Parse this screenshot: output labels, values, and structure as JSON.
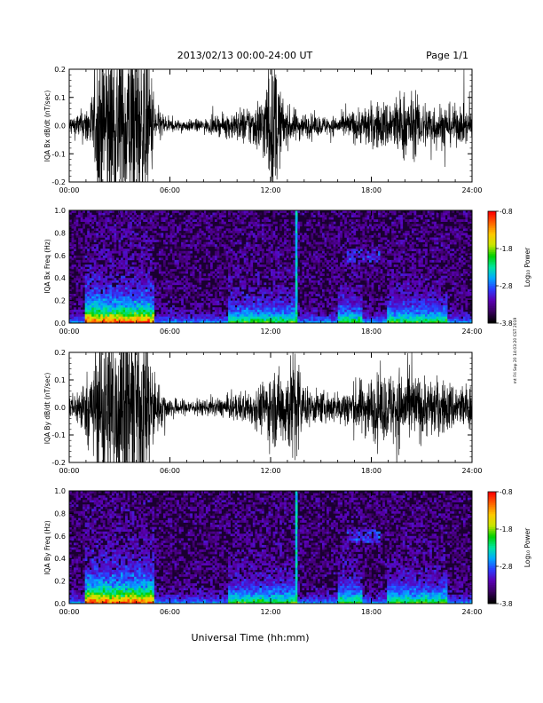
{
  "header": {
    "date_range": "2013/02/13  00:00-24:00 UT",
    "page": "Page 1/1"
  },
  "footer": {
    "xlabel": "Universal Time (hh:mm)",
    "stamp": "mt Fri Sep 20 14:03:20 CST 2019"
  },
  "colorbar": {
    "label": "Log₁₀ Power",
    "ticks": [
      "-0.8",
      "-1.8",
      "-2.8",
      "-3.8"
    ],
    "min": -3.8,
    "max": -0.8,
    "colors": [
      "#000000",
      "#3a0060",
      "#5a00b4",
      "#2c3cff",
      "#00aaff",
      "#00e6a0",
      "#00d000",
      "#c8e600",
      "#ffc800",
      "#ff6400",
      "#ff0000"
    ]
  },
  "chart_data": [
    {
      "type": "line",
      "ylabel": "IQA Bx dB/dt (nT/sec)",
      "xlim": [
        0,
        24
      ],
      "ylim": [
        -0.2,
        0.2
      ],
      "x_ticks": [
        "00:00",
        "06:00",
        "12:00",
        "18:00",
        "24:00"
      ],
      "y_ticks": [
        "-0.2",
        "-0.1",
        "0.0",
        "0.1",
        "0.2"
      ],
      "envelope": {
        "hours": [
          0,
          0.5,
          1,
          1.5,
          1.8,
          2.0,
          2.5,
          3.0,
          3.5,
          4.0,
          4.5,
          4.8,
          5.2,
          6,
          7,
          8,
          9,
          10,
          11,
          11.5,
          12.0,
          12.3,
          12.6,
          13,
          14,
          15,
          16,
          17,
          17.5,
          18,
          19,
          19.5,
          20,
          21,
          22,
          23,
          24
        ],
        "amplitude": [
          0.03,
          0.04,
          0.06,
          0.12,
          0.3,
          0.3,
          0.3,
          0.3,
          0.3,
          0.3,
          0.3,
          0.2,
          0.06,
          0.02,
          0.018,
          0.02,
          0.03,
          0.05,
          0.07,
          0.1,
          0.2,
          0.22,
          0.1,
          0.06,
          0.04,
          0.03,
          0.03,
          0.05,
          0.06,
          0.07,
          0.08,
          0.1,
          0.11,
          0.08,
          0.07,
          0.06,
          0.05
        ]
      }
    },
    {
      "type": "heatmap",
      "ylabel": "IQA Bx Freq (Hz)",
      "xlim": [
        0,
        24
      ],
      "ylim": [
        0,
        1.0
      ],
      "x_ticks": [
        "00:00",
        "06:00",
        "12:00",
        "18:00",
        "24:00"
      ],
      "y_ticks": [
        "0.0",
        "0.2",
        "0.4",
        "0.6",
        "0.8",
        "1.0"
      ],
      "units": "Log10 Power",
      "features": {
        "strong_hours": [
          [
            1.0,
            5.0
          ]
        ],
        "moderate_hours": [
          [
            9.5,
            13.5
          ],
          [
            16.0,
            17.5
          ],
          [
            19.0,
            22.5
          ]
        ],
        "spike_hour": 13.5,
        "band_freq": [
          0.55,
          0.65
        ],
        "band_hours": [
          16.5,
          18.5
        ]
      }
    },
    {
      "type": "line",
      "ylabel": "IQA By dB/dt (nT/sec)",
      "xlim": [
        0,
        24
      ],
      "ylim": [
        -0.2,
        0.2
      ],
      "x_ticks": [
        "00:00",
        "06:00",
        "12:00",
        "18:00",
        "24:00"
      ],
      "y_ticks": [
        "-0.2",
        "-0.1",
        "0.0",
        "0.1",
        "0.2"
      ],
      "envelope": {
        "hours": [
          0,
          0.5,
          1,
          1.5,
          1.8,
          2.0,
          2.5,
          3.0,
          3.5,
          4.0,
          4.5,
          4.8,
          5.2,
          6,
          7,
          8,
          9,
          10,
          11,
          11.5,
          12.0,
          12.5,
          13.0,
          13.5,
          14,
          15,
          16,
          17,
          18,
          19,
          19.5,
          20,
          21,
          22,
          23,
          24
        ],
        "amplitude": [
          0.04,
          0.06,
          0.1,
          0.14,
          0.3,
          0.3,
          0.3,
          0.3,
          0.3,
          0.3,
          0.3,
          0.2,
          0.08,
          0.03,
          0.025,
          0.025,
          0.03,
          0.045,
          0.06,
          0.08,
          0.12,
          0.12,
          0.14,
          0.22,
          0.06,
          0.05,
          0.05,
          0.08,
          0.1,
          0.11,
          0.13,
          0.12,
          0.1,
          0.09,
          0.08,
          0.07
        ]
      }
    },
    {
      "type": "heatmap",
      "ylabel": "IQA By Freq (Hz)",
      "xlim": [
        0,
        24
      ],
      "ylim": [
        0,
        1.0
      ],
      "x_ticks": [
        "00:00",
        "06:00",
        "12:00",
        "18:00",
        "24:00"
      ],
      "y_ticks": [
        "0.0",
        "0.2",
        "0.4",
        "0.6",
        "0.8",
        "1.0"
      ],
      "units": "Log10 Power",
      "features": {
        "strong_hours": [
          [
            1.0,
            5.0
          ]
        ],
        "moderate_hours": [
          [
            9.5,
            13.5
          ],
          [
            16.0,
            17.5
          ],
          [
            19.0,
            22.5
          ]
        ],
        "spike_hour": 13.5,
        "band_freq": [
          0.55,
          0.65
        ],
        "band_hours": [
          16.5,
          18.5
        ]
      }
    }
  ]
}
